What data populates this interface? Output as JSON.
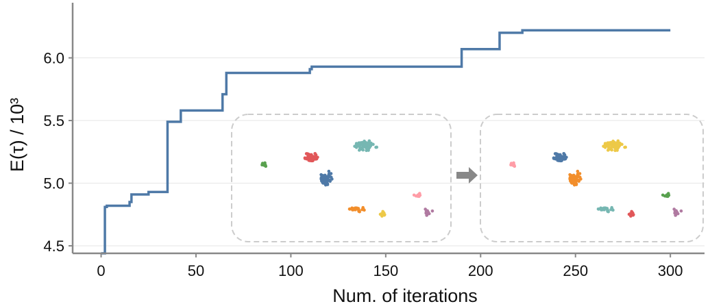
{
  "chart_data": {
    "type": "line",
    "xlabel": "Num. of iterations",
    "ylabel": "E(τ) / 10³",
    "xlim": [
      -15,
      318
    ],
    "ylim": [
      4.44,
      6.44
    ],
    "xticks": [
      0,
      50,
      100,
      150,
      200,
      250,
      300
    ],
    "yticks": [
      4.5,
      5.0,
      5.5,
      6.0
    ],
    "xtick_labels": [
      "0",
      "50",
      "100",
      "150",
      "200",
      "250",
      "300"
    ],
    "ytick_labels": [
      "4.5",
      "5.0",
      "5.5",
      "6.0"
    ],
    "grid": "horizontal",
    "series": [
      {
        "step": "post",
        "color": "#4e79a7",
        "x": [
          0,
          2,
          3,
          15,
          16,
          25,
          35,
          36,
          42,
          64,
          65,
          66,
          110,
          111,
          190,
          210,
          222,
          300
        ],
        "y": [
          4.44,
          4.81,
          4.82,
          4.85,
          4.91,
          4.93,
          5.49,
          5.49,
          5.58,
          5.71,
          5.71,
          5.88,
          5.91,
          5.93,
          6.07,
          6.2,
          6.22,
          6.22
        ]
      }
    ],
    "inset": {
      "arrow_color": "#888888",
      "border_color": "#cccccc",
      "before_palette": [
        "#4e79a7",
        "#e15759",
        "#76b7b2",
        "#f28e2b",
        "#edc948",
        "#59a14f",
        "#ff9da7",
        "#b07aa1"
      ],
      "after_palette": [
        "#4e79a7",
        "#f28e2b",
        "#edc948",
        "#76b7b2",
        "#e15759",
        "#59a14f",
        "#ff9da7",
        "#b07aa1"
      ]
    }
  }
}
